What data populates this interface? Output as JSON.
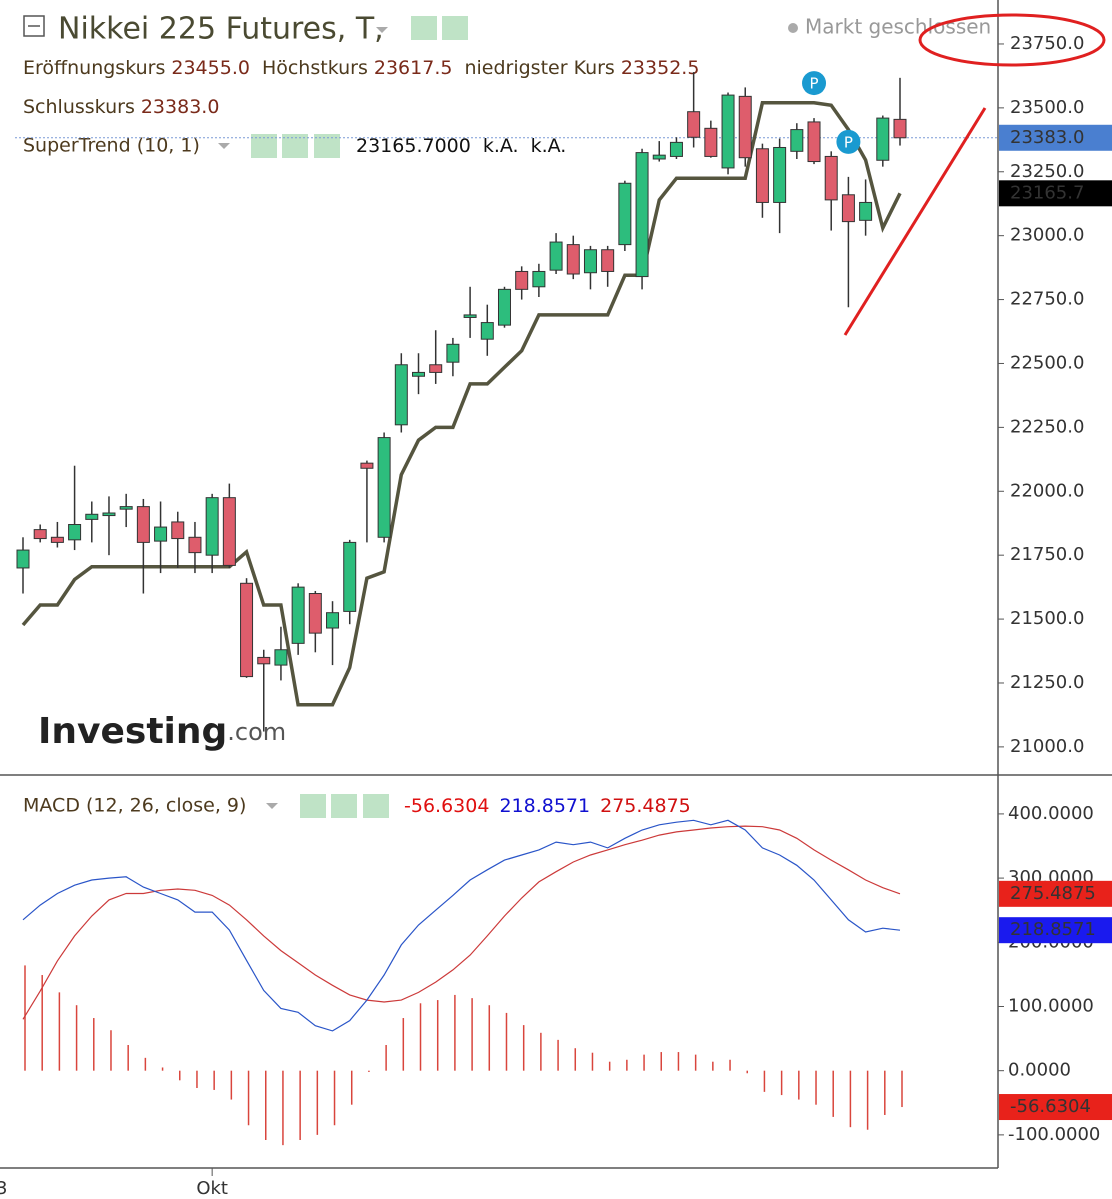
{
  "chart_data": [
    {
      "type": "candlestick",
      "title": "Nikkei 225 Futures, T,",
      "status": "Markt geschlossen",
      "ohlc_legend": {
        "open_label": "Eröffnungskurs",
        "open": "23455.0",
        "high_label": "Höchstkurs",
        "high": "23617.5",
        "low_label": "niedrigster Kurs",
        "low": "23352.5",
        "close_label": "Schlusskurs",
        "close": "23383.0"
      },
      "watermark": [
        "Investing",
        ".com"
      ],
      "x_edge_label": "3",
      "categories": [
        null,
        null,
        null,
        null,
        null,
        null,
        null,
        null,
        null,
        null,
        null,
        "Okt",
        null,
        null,
        null,
        null,
        null,
        null,
        null,
        null,
        null,
        null,
        null,
        null,
        null,
        null,
        null,
        null,
        null,
        null,
        null,
        null,
        null,
        null,
        null,
        null,
        null,
        null,
        null,
        null,
        null,
        null,
        null,
        null,
        null,
        null,
        null,
        null,
        null,
        null,
        null,
        null
      ],
      "open": [
        21700,
        21850,
        21820,
        21810,
        21890,
        21905,
        21930,
        21940,
        21805,
        21880,
        21820,
        21750,
        21975,
        21640,
        21350,
        21320,
        21405,
        21600,
        21465,
        21530,
        22110,
        21820,
        22260,
        22450,
        22495,
        22505,
        22680,
        22595,
        22650,
        22860,
        22800,
        22865,
        22965,
        22855,
        22945,
        22965,
        22840,
        23300,
        23310,
        23485,
        23420,
        23265,
        23545,
        23340,
        23130,
        23330,
        23445,
        23310,
        23160,
        23060,
        23295,
        23455
      ],
      "high": [
        21820,
        21870,
        21880,
        22100,
        21960,
        21980,
        21990,
        21970,
        21960,
        21920,
        21880,
        21990,
        22030,
        21660,
        21380,
        21470,
        21640,
        21610,
        21570,
        21810,
        22120,
        22230,
        22540,
        22540,
        22630,
        22600,
        22800,
        22730,
        22800,
        22880,
        22890,
        23010,
        23000,
        22960,
        22960,
        23215,
        23340,
        23370,
        23385,
        23640,
        23450,
        23560,
        23580,
        23360,
        23380,
        23440,
        23460,
        23330,
        23230,
        23220,
        23470,
        23617.5
      ],
      "low": [
        21600,
        21800,
        21780,
        21770,
        21800,
        21750,
        21860,
        21600,
        21680,
        21700,
        21680,
        21680,
        21700,
        21270,
        21060,
        21260,
        21360,
        21370,
        21320,
        21480,
        21800,
        21800,
        22230,
        22380,
        22420,
        22450,
        22600,
        22530,
        22640,
        22750,
        22760,
        22850,
        22830,
        22790,
        22800,
        22940,
        22790,
        23290,
        23300,
        23345,
        23305,
        23240,
        23270,
        23070,
        23010,
        23300,
        23280,
        23020,
        22720,
        23000,
        23270,
        23352.5
      ],
      "close": [
        21770,
        21815,
        21800,
        21870,
        21910,
        21915,
        21940,
        21800,
        21860,
        21815,
        21760,
        21975,
        21710,
        21275,
        21325,
        21380,
        21625,
        21445,
        21525,
        21800,
        22090,
        22210,
        22495,
        22465,
        22465,
        22575,
        22690,
        22660,
        22790,
        22790,
        22860,
        22975,
        22850,
        22945,
        22860,
        23205,
        23325,
        23315,
        23365,
        23385,
        23310,
        23550,
        23305,
        23130,
        23345,
        23415,
        23290,
        23140,
        23055,
        23130,
        23460,
        23383
      ],
      "up_color": "#2dbd7d",
      "down_color": "#de5d6c",
      "close_line_color": "#7a9ad6",
      "markers": [
        {
          "index": 46,
          "label": "P"
        },
        {
          "index": 48,
          "label": "P"
        }
      ],
      "overlay": {
        "name": "SuperTrend (10, 1)",
        "color": "#55553f",
        "legend_value": "23165.7000",
        "legend_extra": [
          "k.A.",
          "k.A."
        ],
        "last_label": "23165.7",
        "values": [
          21477,
          21555,
          21555,
          21655,
          21705,
          21705,
          21705,
          21705,
          21705,
          21705,
          21705,
          21705,
          21705,
          21763,
          21555,
          21555,
          21165,
          21165,
          21165,
          21310,
          21660,
          21685,
          22065,
          22200,
          22250,
          22250,
          22420,
          22420,
          22485,
          22550,
          22690,
          22690,
          22690,
          22690,
          22690,
          22845,
          22845,
          23140,
          23225,
          23225,
          23225,
          23225,
          23225,
          23520,
          23520,
          23520,
          23520,
          23510,
          23415,
          23296,
          23030,
          23165.7
        ]
      },
      "ylim": [
        20890,
        23922
      ],
      "yticks": [
        {
          "value": 21000,
          "label": "21000.0"
        },
        {
          "value": 21250,
          "label": "21250.0"
        },
        {
          "value": 21500,
          "label": "21500.0"
        },
        {
          "value": 21750,
          "label": "21750.0"
        },
        {
          "value": 22000,
          "label": "22000.0"
        },
        {
          "value": 22250,
          "label": "22250.0"
        },
        {
          "value": 22500,
          "label": "22500.0"
        },
        {
          "value": 22750,
          "label": "22750.0"
        },
        {
          "value": 23000,
          "label": "23000.0"
        },
        {
          "value": 23250,
          "label": "23250.0"
        },
        {
          "value": 23500,
          "label": "23500.0"
        },
        {
          "value": 23750,
          "label": "23750.0"
        }
      ]
    },
    {
      "type": "macd",
      "name": "MACD (12, 26, close, 9)",
      "histogram": {
        "color": "#d9453c",
        "label": "-56.6304",
        "values": [
          164,
          149,
          122,
          102,
          82,
          63,
          40,
          20,
          5,
          -15,
          -27,
          -30,
          -45,
          -85,
          -108,
          -116,
          -108,
          -100,
          -85,
          -53,
          -2,
          40,
          82,
          105,
          110,
          118,
          113,
          102,
          90,
          71,
          59,
          48,
          35,
          28,
          14,
          17,
          25,
          29,
          29,
          25,
          14,
          17,
          -4,
          -33,
          -38,
          -45,
          -53,
          -72,
          -88,
          -92,
          -69,
          -56.6304
        ]
      },
      "macd": {
        "color": "#2a55c8",
        "label": "218.8571",
        "values": [
          235,
          258,
          276,
          289,
          297,
          300,
          302,
          286,
          276,
          266,
          247,
          247,
          219,
          172,
          125,
          97,
          91,
          70,
          62,
          78,
          110,
          149,
          196,
          227,
          250,
          273,
          297,
          313,
          328,
          336,
          344,
          356,
          352,
          356,
          347,
          362,
          375,
          383,
          387,
          390,
          383,
          390,
          375,
          347,
          336,
          320,
          297,
          266,
          235,
          216,
          222,
          218.8571
        ]
      },
      "signal": {
        "color": "#cc3a3a",
        "label": "275.4875",
        "values": [
          80,
          124,
          171,
          210,
          241,
          266,
          276,
          276,
          281,
          283,
          281,
          273,
          258,
          235,
          210,
          187,
          168,
          149,
          133,
          118,
          110,
          107,
          110,
          122,
          138,
          157,
          180,
          210,
          241,
          269,
          294,
          310,
          325,
          336,
          344,
          352,
          359,
          367,
          372,
          375,
          378,
          380,
          381,
          380,
          375,
          362,
          344,
          328,
          313,
          297,
          285,
          275.4875
        ]
      },
      "ylim": [
        -151.6,
        460.6
      ],
      "yticks": [
        {
          "value": 400,
          "label": "400.0000"
        },
        {
          "value": 300,
          "label": "300.0000"
        },
        {
          "value": 200,
          "label": "200.0000"
        },
        {
          "value": 100,
          "label": "100.0000"
        },
        {
          "value": 0,
          "label": "0.0000"
        },
        {
          "value": -100,
          "label": "-100.0000"
        }
      ]
    }
  ]
}
